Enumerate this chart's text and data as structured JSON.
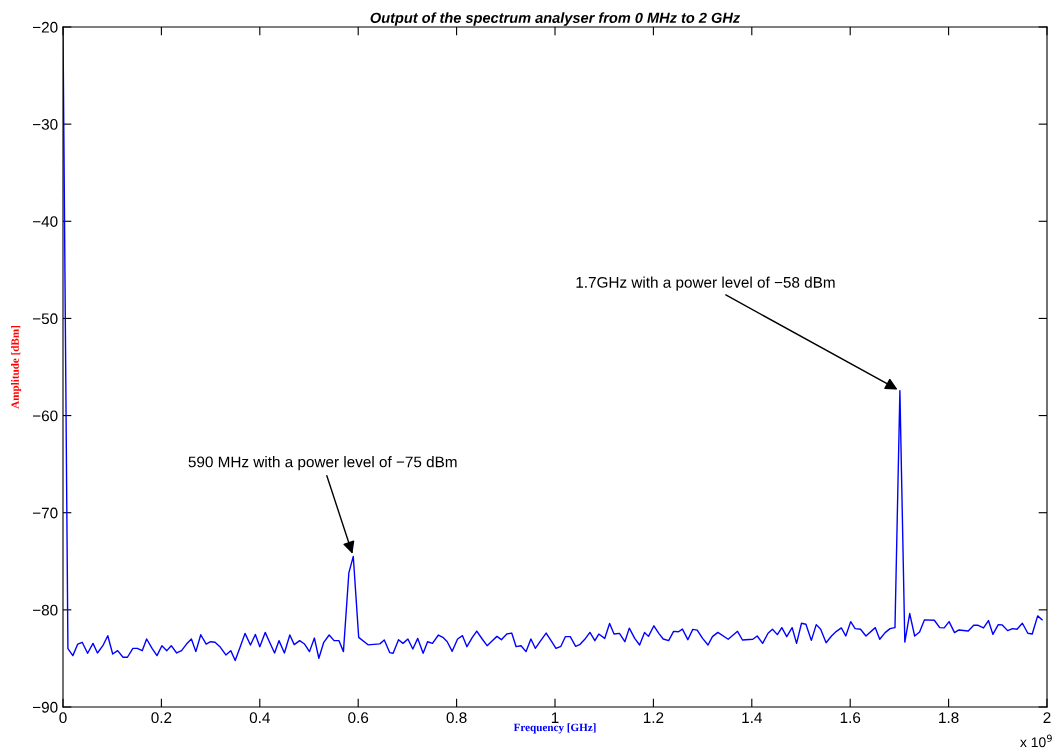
{
  "chart_data": {
    "type": "line",
    "title": "Output of the spectrum analyser from 0 MHz to 2 GHz",
    "xlabel": "Frequency [GHz]",
    "ylabel": "Amplitude [dBm]",
    "xlim": [
      0,
      2
    ],
    "xticks": [
      0,
      0.2,
      0.4,
      0.6,
      0.8,
      1,
      1.2,
      1.4,
      1.6,
      1.8,
      2
    ],
    "ylim": [
      -90,
      -20
    ],
    "yticks": [
      -90,
      -80,
      -70,
      -60,
      -50,
      -40,
      -30,
      -20
    ],
    "grid": false,
    "legend": false,
    "marker": "none",
    "line_style": "solid",
    "annotations": [
      {
        "text": "590 MHz with a power level of −75 dBm",
        "x": 0.59,
        "y": -74.5
      },
      {
        "text": "1.7GHz with a power level of −58 dBm",
        "x": 1.701,
        "y": -57.45
      },
      "x 10$^{9}$"
    ],
    "series": [
      {
        "color": "#0000ff",
        "x": [
          0,
          0.01,
          0.02,
          0.03,
          0.039,
          0.05,
          0.061,
          0.07,
          0.081,
          0.091,
          0.101,
          0.111,
          0.122,
          0.131,
          0.142,
          0.151,
          0.161,
          0.17,
          0.181,
          0.191,
          0.201,
          0.211,
          0.22,
          0.231,
          0.241,
          0.251,
          0.261,
          0.27,
          0.28,
          0.291,
          0.3,
          0.309,
          0.32,
          0.331,
          0.341,
          0.35,
          0.361,
          0.37,
          0.381,
          0.391,
          0.4,
          0.411,
          0.42,
          0.43,
          0.439,
          0.45,
          0.461,
          0.47,
          0.481,
          0.491,
          0.501,
          0.511,
          0.52,
          0.53,
          0.541,
          0.551,
          0.561,
          0.57,
          0.581,
          0.59,
          0.601,
          0.62,
          0.644,
          0.653,
          0.664,
          0.671,
          0.682,
          0.691,
          0.701,
          0.711,
          0.721,
          0.732,
          0.741,
          0.751,
          0.763,
          0.772,
          0.781,
          0.791,
          0.802,
          0.812,
          0.821,
          0.832,
          0.841,
          0.852,
          0.862,
          0.872,
          0.882,
          0.891,
          0.902,
          0.912,
          0.921,
          0.931,
          0.941,
          0.951,
          0.96,
          0.971,
          0.982,
          0.992,
          1.002,
          1.012,
          1.021,
          1.031,
          1.042,
          1.051,
          1.062,
          1.071,
          1.081,
          1.089,
          1.101,
          1.111,
          1.12,
          1.131,
          1.142,
          1.151,
          1.162,
          1.172,
          1.182,
          1.19,
          1.201,
          1.211,
          1.22,
          1.231,
          1.241,
          1.251,
          1.259,
          1.27,
          1.28,
          1.289,
          1.3,
          1.311,
          1.32,
          1.331,
          1.352,
          1.371,
          1.381,
          1.402,
          1.411,
          1.422,
          1.433,
          1.442,
          1.452,
          1.461,
          1.471,
          1.482,
          1.491,
          1.501,
          1.51,
          1.521,
          1.531,
          1.54,
          1.551,
          1.562,
          1.572,
          1.582,
          1.591,
          1.601,
          1.61,
          1.621,
          1.632,
          1.651,
          1.66,
          1.671,
          1.681,
          1.691,
          1.701,
          1.711,
          1.721,
          1.731,
          1.741,
          1.751,
          1.771,
          1.782,
          1.791,
          1.801,
          1.812,
          1.821,
          1.84,
          1.851,
          1.86,
          1.871,
          1.881,
          1.89,
          1.901,
          1.909,
          1.92,
          1.93,
          1.939,
          1.95,
          1.961,
          1.97,
          1.981,
          1.99
        ],
        "values": [
          -20,
          -84.0,
          -84.71,
          -83.52,
          -83.34,
          -84.47,
          -83.45,
          -84.44,
          -83.69,
          -82.66,
          -84.54,
          -84.2,
          -84.88,
          -84.88,
          -83.96,
          -83.96,
          -84.2,
          -83.0,
          -83.96,
          -84.71,
          -83.69,
          -84.2,
          -83.69,
          -84.44,
          -84.2,
          -83.52,
          -83.0,
          -84.3,
          -82.56,
          -83.52,
          -83.28,
          -83.34,
          -83.86,
          -84.64,
          -84.2,
          -85.22,
          -83.69,
          -82.42,
          -83.62,
          -82.53,
          -83.79,
          -82.32,
          -83.34,
          -84.44,
          -83.17,
          -84.44,
          -82.59,
          -83.58,
          -83.17,
          -83.52,
          -84.3,
          -82.9,
          -84.98,
          -83.34,
          -82.59,
          -83.17,
          -83.17,
          -84.3,
          -76.2,
          -74.5,
          -82.83,
          -83.6,
          -83.5,
          -83.1,
          -84.4,
          -84.47,
          -83.07,
          -83.45,
          -83.0,
          -84.03,
          -82.94,
          -84.47,
          -83.28,
          -83.45,
          -82.59,
          -82.83,
          -83.28,
          -84.27,
          -83.0,
          -82.66,
          -83.79,
          -82.83,
          -82.18,
          -83.0,
          -83.69,
          -83.21,
          -82.73,
          -83.07,
          -82.49,
          -82.39,
          -83.79,
          -83.69,
          -84.3,
          -83.0,
          -83.96,
          -83.17,
          -82.39,
          -83.17,
          -83.96,
          -83.75,
          -82.76,
          -82.76,
          -83.75,
          -83.55,
          -82.94,
          -82.32,
          -83.17,
          -82.49,
          -82.94,
          -81.4,
          -82.49,
          -82.42,
          -83.28,
          -81.88,
          -82.94,
          -83.62,
          -82.32,
          -82.73,
          -81.64,
          -82.42,
          -83.0,
          -83.17,
          -82.22,
          -82.25,
          -81.98,
          -83.07,
          -82.01,
          -82.08,
          -82.94,
          -83.62,
          -82.76,
          -82.32,
          -83.03,
          -82.21,
          -83.1,
          -83.03,
          -82.69,
          -83.45,
          -82.41,
          -82.0,
          -82.55,
          -81.83,
          -82.76,
          -81.83,
          -83.45,
          -81.38,
          -81.48,
          -83.14,
          -81.52,
          -82.0,
          -83.38,
          -82.69,
          -82.21,
          -81.86,
          -82.69,
          -81.21,
          -81.93,
          -82.0,
          -82.69,
          -81.83,
          -83.03,
          -82.34,
          -81.93,
          -81.83,
          -57.45,
          -83.31,
          -80.38,
          -82.69,
          -82.28,
          -81.03,
          -81.07,
          -81.83,
          -81.86,
          -81.21,
          -82.34,
          -82.07,
          -82.17,
          -81.59,
          -81.59,
          -81.86,
          -81.1,
          -82.52,
          -81.52,
          -81.55,
          -82.14,
          -81.93,
          -82.0,
          -81.38,
          -82.41,
          -82.48,
          -80.62,
          -81.03
        ]
      }
    ]
  }
}
